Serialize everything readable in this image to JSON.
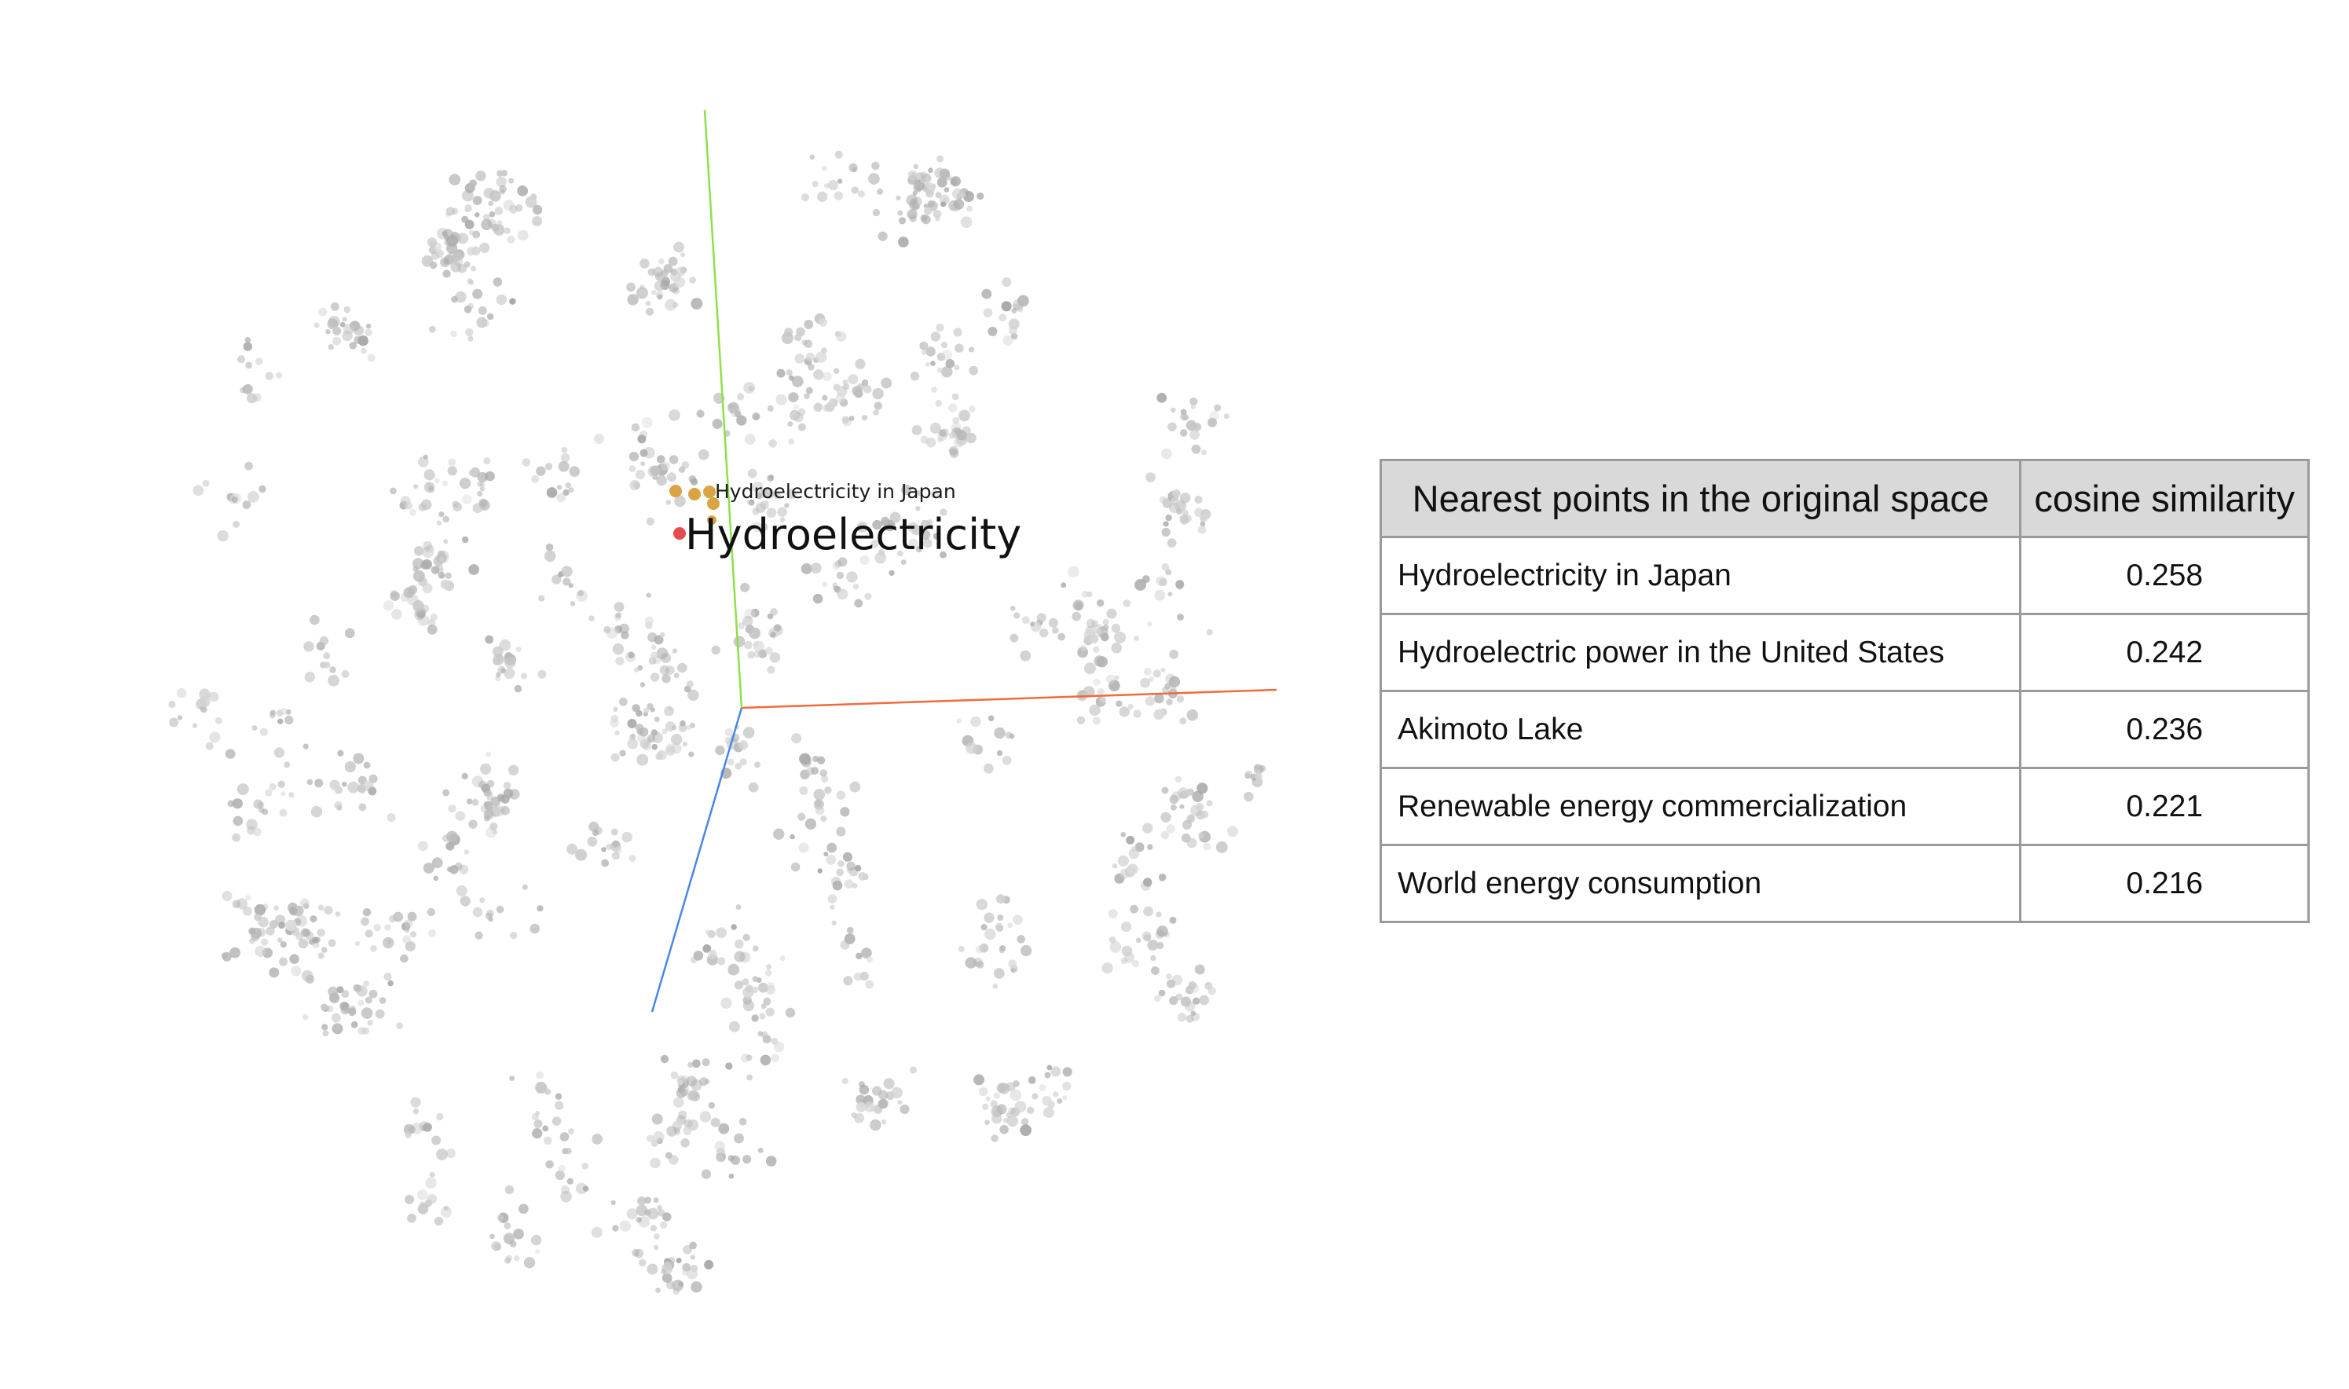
{
  "projection": {
    "focus_label": "Hydroelectricity",
    "neighbor_label": "Hydroelectricity in Japan",
    "colors": {
      "focus_point": "#e84b4b",
      "neighbor_point": "#d9a441",
      "background_point": "#bdbdbd",
      "axis_x": "#f26b3a",
      "axis_y": "#8ee04a",
      "axis_z": "#4a86e8"
    }
  },
  "table": {
    "header_name": "Nearest points in the original space",
    "header_similarity": "cosine similarity",
    "rows": [
      {
        "name": "Hydroelectricity in Japan",
        "similarity": "0.258"
      },
      {
        "name": "Hydroelectric power in the United States",
        "similarity": "0.242"
      },
      {
        "name": "Akimoto Lake",
        "similarity": "0.236"
      },
      {
        "name": "Renewable energy commercialization",
        "similarity": "0.221"
      },
      {
        "name": "World energy consumption",
        "similarity": "0.216"
      }
    ]
  }
}
